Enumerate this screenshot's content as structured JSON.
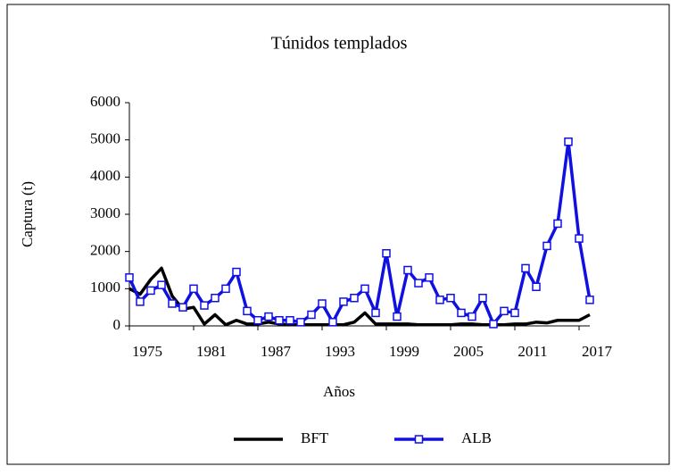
{
  "chart_data": {
    "type": "line",
    "title": "Túnidos templados",
    "xlabel": "Años",
    "ylabel": "Captura (t)",
    "x": [
      1975,
      1976,
      1977,
      1978,
      1979,
      1980,
      1981,
      1982,
      1983,
      1984,
      1985,
      1986,
      1987,
      1988,
      1989,
      1990,
      1991,
      1992,
      1993,
      1994,
      1995,
      1996,
      1997,
      1998,
      1999,
      2000,
      2001,
      2002,
      2003,
      2004,
      2005,
      2006,
      2007,
      2008,
      2009,
      2010,
      2011,
      2012,
      2013,
      2014,
      2015,
      2016,
      2017,
      2018
    ],
    "series": [
      {
        "name": "BFT",
        "color": "#000000",
        "marker": false,
        "values": [
          1000,
          850,
          1250,
          1550,
          800,
          450,
          500,
          50,
          300,
          30,
          150,
          50,
          50,
          100,
          50,
          30,
          30,
          30,
          30,
          30,
          30,
          100,
          350,
          50,
          50,
          50,
          50,
          30,
          30,
          30,
          30,
          50,
          50,
          30,
          30,
          30,
          50,
          50,
          100,
          80,
          150,
          150,
          150,
          300
        ]
      },
      {
        "name": "ALB",
        "color": "#1010e0",
        "marker": true,
        "values": [
          1300,
          650,
          950,
          1100,
          600,
          500,
          1000,
          550,
          750,
          1000,
          1450,
          400,
          150,
          250,
          150,
          150,
          100,
          300,
          600,
          100,
          650,
          750,
          1000,
          350,
          1950,
          250,
          1500,
          1150,
          1300,
          700,
          750,
          350,
          250,
          750,
          50,
          400,
          350,
          1550,
          1050,
          2150,
          2750,
          4950,
          2350,
          700
        ]
      }
    ],
    "xlim": [
      1975,
      2018
    ],
    "xticks": [
      1975,
      1981,
      1987,
      1993,
      1999,
      2005,
      2011,
      2017
    ],
    "ylim": [
      0,
      6000
    ],
    "yticks": [
      0,
      1000,
      2000,
      3000,
      4000,
      5000,
      6000
    ],
    "legend": "bottom"
  }
}
